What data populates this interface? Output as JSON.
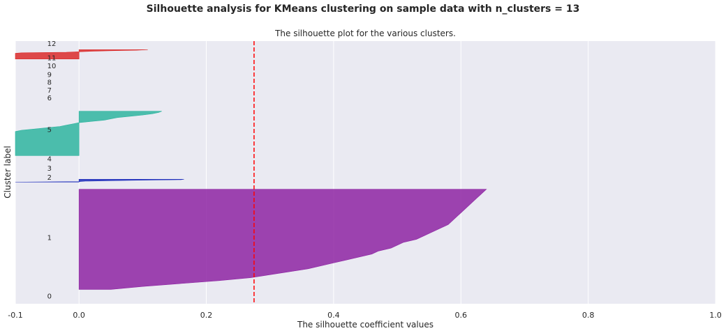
{
  "suptitle": "Silhouette analysis for KMeans clustering on sample data with n_clusters = 13",
  "chart_data": {
    "type": "area",
    "title": "The silhouette plot for the various clusters.",
    "xlabel": "The silhouette coefficient values",
    "ylabel": "Cluster label",
    "xlim": [
      -0.1,
      1.0
    ],
    "xticks": [
      -0.1,
      0.0,
      0.2,
      0.4,
      0.6,
      0.8,
      1.0
    ],
    "xtick_labels": [
      "-0.1",
      "0.0",
      "0.2",
      "0.4",
      "0.6",
      "0.8",
      "1.0"
    ],
    "ylim": [
      0,
      367
    ],
    "grid": true,
    "background": "#EAEAF2",
    "average_silhouette": 0.275,
    "average_line_color": "#FF0000",
    "cluster_labels": [
      "0",
      "1",
      "2",
      "3",
      "4",
      "5",
      "6",
      "7",
      "8",
      "9",
      "10",
      "11",
      "12"
    ],
    "clusters": [
      {
        "label": "0",
        "y0": 20,
        "sorted_values": [],
        "color": "#1a1a1a"
      },
      {
        "label": "1",
        "y0": 20,
        "color": "#8E24A3",
        "sorted_values": [
          0.05,
          0.1,
          0.16,
          0.22,
          0.27,
          0.3,
          0.33,
          0.36,
          0.38,
          0.4,
          0.42,
          0.44,
          0.46,
          0.47,
          0.49,
          0.5,
          0.51,
          0.53,
          0.54,
          0.55,
          0.56,
          0.57,
          0.58,
          0.585,
          0.59,
          0.595,
          0.6,
          0.605,
          0.61,
          0.615,
          0.62,
          0.625,
          0.63,
          0.635,
          0.64
        ]
      },
      {
        "label": "2",
        "y0": 170,
        "color": "#1A2ABA",
        "sorted_values": [
          -0.1,
          0.0,
          0.01,
          0.05,
          0.1,
          0.16,
          0.165
        ]
      },
      {
        "label": "3",
        "y0": 177,
        "sorted_values": [],
        "color": "#1a1a1a"
      },
      {
        "label": "4",
        "y0": 177,
        "sorted_values": [],
        "color": "#1a1a1a"
      },
      {
        "label": "5",
        "y0": 207,
        "color": "#2FB5A0",
        "sorted_values": [
          -0.1,
          -0.1,
          -0.1,
          -0.1,
          -0.1,
          -0.1,
          -0.1,
          -0.1,
          -0.1,
          -0.1,
          -0.1,
          -0.1,
          -0.1,
          -0.1,
          -0.1,
          -0.1,
          -0.1,
          -0.1,
          -0.1,
          -0.1,
          -0.09,
          -0.07,
          -0.05,
          -0.03,
          -0.02,
          -0.01,
          0.0,
          0.02,
          0.04,
          0.05,
          0.06,
          0.08,
          0.1,
          0.115,
          0.125,
          0.13
        ]
      },
      {
        "label": "6",
        "y0": 280,
        "sorted_values": [],
        "color": "#1a1a1a"
      },
      {
        "label": "7",
        "y0": 280,
        "sorted_values": [],
        "color": "#1a1a1a"
      },
      {
        "label": "8",
        "y0": 280,
        "sorted_values": [],
        "color": "#1a1a1a"
      },
      {
        "label": "9",
        "y0": 280,
        "sorted_values": [],
        "color": "#1a1a1a"
      },
      {
        "label": "10",
        "y0": 280,
        "sorted_values": [],
        "color": "#1a1a1a"
      },
      {
        "label": "11",
        "y0": 280,
        "sorted_values": [],
        "color": "#1a1a1a"
      },
      {
        "label": "12",
        "y0": 342,
        "color": "#DA2B2B",
        "sorted_values": [
          -0.1,
          -0.1,
          -0.1,
          -0.1,
          -0.1,
          -0.1,
          -0.1,
          -0.1,
          -0.1,
          -0.1,
          -0.1,
          -0.1,
          -0.09,
          -0.02,
          0.0,
          0.02,
          0.05,
          0.09,
          0.108
        ]
      }
    ]
  }
}
